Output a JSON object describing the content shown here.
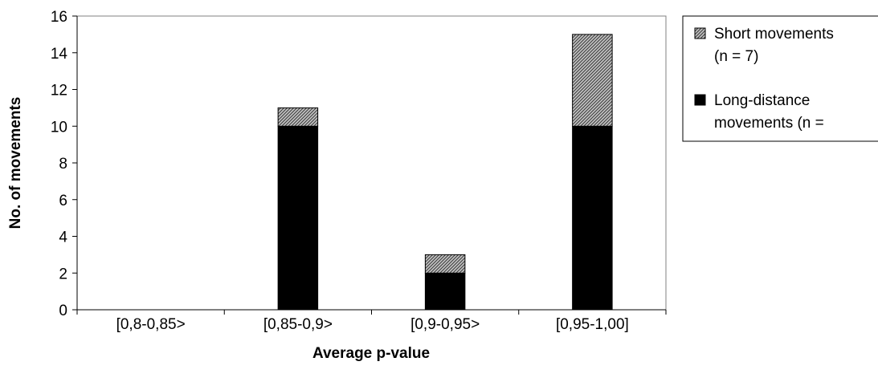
{
  "chart_data": {
    "type": "bar",
    "stacked": true,
    "title": "",
    "xlabel": "Average p-value",
    "ylabel": "No. of movements",
    "categories": [
      "[0,8-0,85>",
      "[0,85-0,9>",
      "[0,9-0,95>",
      "[0,95-1,00]"
    ],
    "ylim": [
      0,
      16
    ],
    "yticks": [
      0,
      2,
      4,
      6,
      8,
      10,
      12,
      14,
      16
    ],
    "grid": false,
    "legend_position": "right",
    "series": [
      {
        "name": "Long-distance movements (n =",
        "values": [
          0,
          10,
          2,
          10
        ],
        "color": "#000000",
        "pattern": "solid"
      },
      {
        "name": "Short movements (n = 7)",
        "values": [
          0,
          1,
          1,
          5
        ],
        "color": "#888888",
        "pattern": "diagonal-hatch"
      }
    ]
  },
  "legend": {
    "items": [
      {
        "line1": "Short movements",
        "line2": "(n = 7)",
        "swatch": "hatch"
      },
      {
        "line1": "Long-distance",
        "line2": "movements (n =",
        "swatch": "solid"
      }
    ]
  }
}
